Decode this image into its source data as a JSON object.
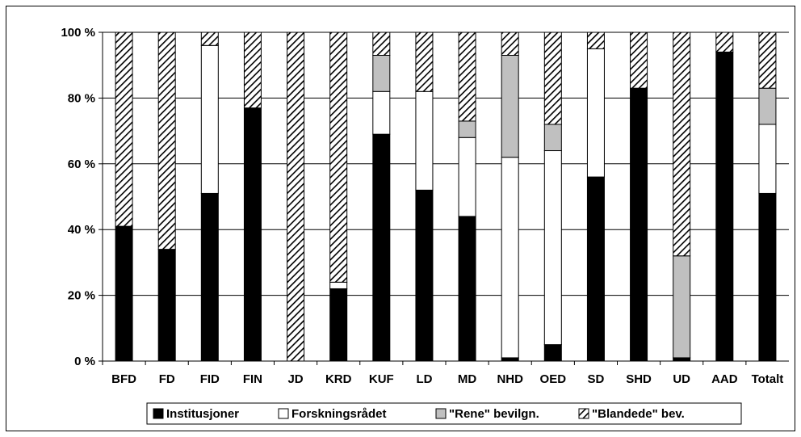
{
  "chart_data": {
    "type": "bar",
    "stacked": "percent",
    "categories": [
      "BFD",
      "FD",
      "FID",
      "FIN",
      "JD",
      "KRD",
      "KUF",
      "LD",
      "MD",
      "NHD",
      "OED",
      "SD",
      "SHD",
      "UD",
      "AAD",
      "Totalt"
    ],
    "series": [
      {
        "name": "Institusjoner",
        "color": "#000000",
        "pattern": "solid",
        "values": [
          41,
          34,
          51,
          77,
          0,
          22,
          69,
          52,
          44,
          1,
          5,
          56,
          83,
          1,
          94,
          51
        ]
      },
      {
        "name": "Forskningsrådet",
        "color": "#ffffff",
        "pattern": "solid",
        "values": [
          0,
          0,
          45,
          0,
          0,
          2,
          13,
          30,
          24,
          61,
          59,
          39,
          0,
          0,
          0,
          21
        ]
      },
      {
        "name": "\"Rene\" bevilgn.",
        "color": "#c0c0c0",
        "pattern": "solid",
        "values": [
          0,
          0,
          0,
          0,
          0,
          0,
          11,
          0,
          5,
          31,
          8,
          0,
          0,
          31,
          0,
          11
        ]
      },
      {
        "name": "\"Blandede\" bev.",
        "color": "#000000",
        "pattern": "hatched",
        "values": [
          59,
          66,
          4,
          23,
          100,
          76,
          7,
          18,
          27,
          7,
          28,
          5,
          17,
          68,
          6,
          17
        ]
      }
    ],
    "ylim": [
      0,
      100
    ],
    "yticks": [
      "0 %",
      "20 %",
      "40 %",
      "60 %",
      "80 %",
      "100 %"
    ],
    "grid": true,
    "legend_position": "bottom"
  }
}
